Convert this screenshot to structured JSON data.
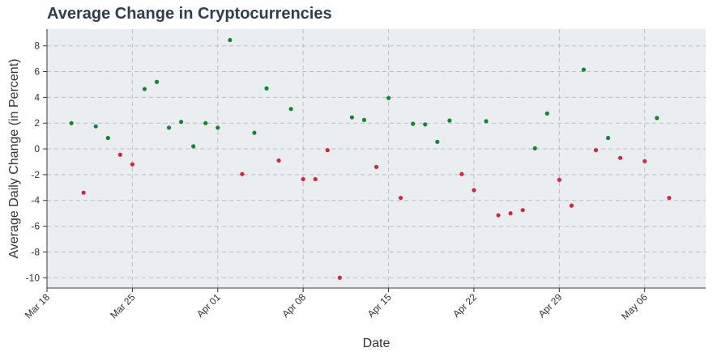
{
  "chart_data": {
    "type": "scatter",
    "title": "Average Change in Cryptocurrencies",
    "xlabel": "Date",
    "ylabel": "Average Daily Change (in Percent)",
    "x_ticks": [
      "Mar 18",
      "Mar 25",
      "Apr 01",
      "Apr 08",
      "Apr 15",
      "Apr 22",
      "Apr 29",
      "May 06"
    ],
    "y_ticks": [
      "-10",
      "-8",
      "-6",
      "-4",
      "-2",
      "0",
      "2",
      "4",
      "6",
      "8"
    ],
    "xlim": [
      "2024-03-18",
      "2024-05-11"
    ],
    "ylim": [
      -10.8,
      9.3
    ],
    "grid": true,
    "positive_color": "#0a8a2e",
    "negative_color": "#d6243c",
    "plot_background": "#ebeef0",
    "points": [
      {
        "x": "2024-03-20",
        "y": 2.0
      },
      {
        "x": "2024-03-21",
        "y": -3.4
      },
      {
        "x": "2024-03-22",
        "y": 1.75
      },
      {
        "x": "2024-03-23",
        "y": 0.85
      },
      {
        "x": "2024-03-24",
        "y": -0.45
      },
      {
        "x": "2024-03-25",
        "y": -1.2
      },
      {
        "x": "2024-03-26",
        "y": 4.65
      },
      {
        "x": "2024-03-27",
        "y": 5.2
      },
      {
        "x": "2024-03-28",
        "y": 1.65
      },
      {
        "x": "2024-03-29",
        "y": 2.1
      },
      {
        "x": "2024-03-30",
        "y": 0.2
      },
      {
        "x": "2024-03-31",
        "y": 2.0
      },
      {
        "x": "2024-04-01",
        "y": 1.65
      },
      {
        "x": "2024-04-02",
        "y": 8.45
      },
      {
        "x": "2024-04-03",
        "y": -1.95
      },
      {
        "x": "2024-04-04",
        "y": 1.25
      },
      {
        "x": "2024-04-05",
        "y": 4.7
      },
      {
        "x": "2024-04-06",
        "y": -0.9
      },
      {
        "x": "2024-04-07",
        "y": 3.1
      },
      {
        "x": "2024-04-08",
        "y": -2.35
      },
      {
        "x": "2024-04-09",
        "y": -2.35
      },
      {
        "x": "2024-04-10",
        "y": -0.1
      },
      {
        "x": "2024-04-11",
        "y": -10.0
      },
      {
        "x": "2024-04-12",
        "y": 2.45
      },
      {
        "x": "2024-04-13",
        "y": 2.25
      },
      {
        "x": "2024-04-14",
        "y": -1.4
      },
      {
        "x": "2024-04-15",
        "y": 3.95
      },
      {
        "x": "2024-04-16",
        "y": -3.8
      },
      {
        "x": "2024-04-17",
        "y": 1.95
      },
      {
        "x": "2024-04-18",
        "y": 1.9
      },
      {
        "x": "2024-04-19",
        "y": 0.55
      },
      {
        "x": "2024-04-20",
        "y": 2.2
      },
      {
        "x": "2024-04-21",
        "y": -1.95
      },
      {
        "x": "2024-04-22",
        "y": -3.2
      },
      {
        "x": "2024-04-23",
        "y": 2.15
      },
      {
        "x": "2024-04-24",
        "y": -5.15
      },
      {
        "x": "2024-04-25",
        "y": -5.0
      },
      {
        "x": "2024-04-26",
        "y": -4.75
      },
      {
        "x": "2024-04-27",
        "y": 0.05
      },
      {
        "x": "2024-04-28",
        "y": 2.75
      },
      {
        "x": "2024-04-29",
        "y": -2.4
      },
      {
        "x": "2024-04-30",
        "y": -4.4
      },
      {
        "x": "2024-05-01",
        "y": 6.15
      },
      {
        "x": "2024-05-02",
        "y": -0.1
      },
      {
        "x": "2024-05-03",
        "y": 0.85
      },
      {
        "x": "2024-05-04",
        "y": -0.7
      },
      {
        "x": "2024-05-06",
        "y": -0.95
      },
      {
        "x": "2024-05-07",
        "y": 2.4
      },
      {
        "x": "2024-05-08",
        "y": -3.8
      }
    ]
  }
}
